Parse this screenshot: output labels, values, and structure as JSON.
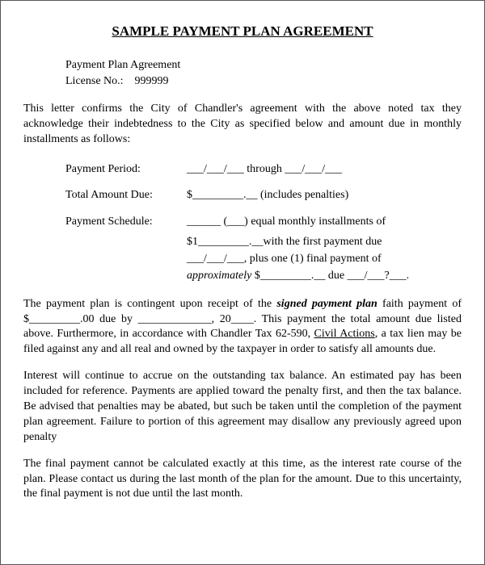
{
  "title": "SAMPLE PAYMENT PLAN AGREEMENT",
  "header": {
    "line1": "Payment Plan Agreement",
    "line2_label": "License No.:",
    "line2_value": "999999"
  },
  "intro": "This letter confirms the City of Chandler's agreement with the above noted tax they acknowledge their indebtedness to the City as specified below and amount due in monthly installments as follows:",
  "fields": {
    "period_label": "Payment Period:",
    "period_value": "___/___/___     through     ___/___/___",
    "total_label": "Total Amount Due:",
    "total_value": "$_________.__  (includes penalties)",
    "schedule_label": "Payment Schedule:",
    "schedule_line1": "______ (___) equal monthly installments of",
    "schedule_line2a": "$1_________.__with the first payment due",
    "schedule_line2b": "___/___/___, plus one (1) final payment of",
    "schedule_line3a": "approximately",
    "schedule_line3b": " $_________.__ due ___/___?___."
  },
  "para2_a": "The payment plan is contingent upon receipt of the ",
  "para2_b": "signed payment plan",
  "para2_c": " faith payment of $_________.00 due by _____________, 20____.  This payment the total amount due listed above.  Furthermore, in accordance with Chandler Tax 62-590, ",
  "para2_d": "Civil Actions",
  "para2_e": ", a tax lien may be filed against any and all real and owned by the taxpayer in order to satisfy all amounts due.",
  "para3": "Interest will continue to accrue on the outstanding tax balance.  An estimated pay has been included for reference.  Payments are applied toward the penalty first, and then the tax balance.  Be advised that penalties may be abated, but such be taken until the completion of the payment plan agreement.   Failure to portion of this agreement may disallow any previously agreed upon penalty",
  "para4": "The final payment cannot be calculated exactly at this time, as the interest rate course of the plan.   Please contact us during the last month of the plan for the amount.  Due to this uncertainty, the final payment is not due until the last month.",
  "styles": {
    "font_family": "Times New Roman",
    "text_color": "#000000",
    "background_color": "#ffffff",
    "title_fontsize": 17,
    "body_fontsize": 14
  }
}
